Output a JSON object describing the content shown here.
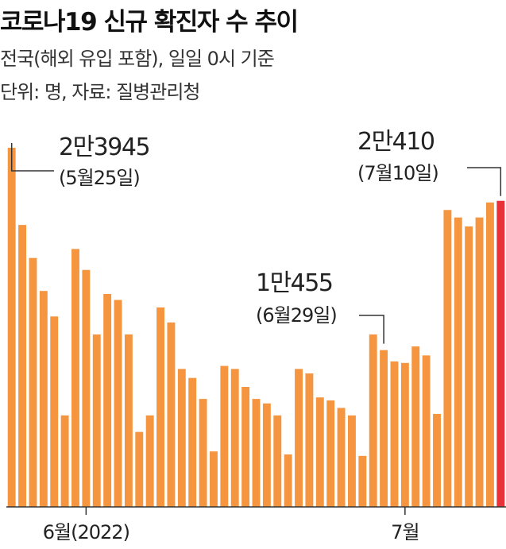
{
  "header": {
    "title": "코로나19 신규 확진자 수 추이",
    "subtitle1": "전국(해외 유입 포함), 일일 0시 기준",
    "subtitle2": "단위: 명, 자료: 질병관리청"
  },
  "colors": {
    "bar": "#f5953f",
    "highlight": "#e8323a",
    "axis": "#333333",
    "leader": "#333333"
  },
  "chart_data": {
    "type": "bar",
    "title": "코로나19 신규 확진자 수 추이",
    "xlabel": "",
    "ylabel": "",
    "ylim": [
      0,
      24000
    ],
    "x_ticks": [
      {
        "label": "6월(2022)",
        "index": 7
      },
      {
        "label": "7월",
        "index": 37
      }
    ],
    "series": [
      {
        "values": [
          23945,
          18800,
          16600,
          14400,
          12700,
          6100,
          17200,
          15800,
          11500,
          14200,
          13800,
          11500,
          5000,
          6100,
          13300,
          12300,
          9200,
          8600,
          7200,
          3700,
          9400,
          9200,
          8000,
          7200,
          6900,
          6100,
          3500,
          9200,
          8900,
          7300,
          7100,
          6600,
          6100,
          3400,
          11500,
          10455,
          9700,
          9600,
          10700,
          10100,
          6200,
          19800,
          19300,
          18700,
          19300,
          20300,
          20410
        ]
      }
    ],
    "highlight_index": 46,
    "annotations": [
      {
        "index": 0,
        "value_text": "2만3945",
        "date_text": "(5월25일)"
      },
      {
        "index": 35,
        "value_text": "1만455",
        "date_text": "(6월29일)"
      },
      {
        "index": 46,
        "value_text": "2만410",
        "date_text": "(7월10일)"
      }
    ]
  }
}
